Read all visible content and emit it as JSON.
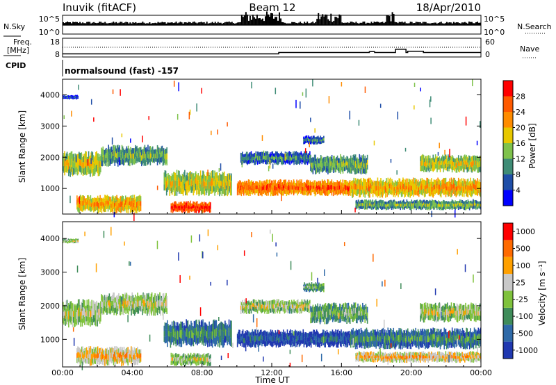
{
  "header": {
    "station": "Inuvik (fitACF)",
    "beam": "Beam 12",
    "date": "18/Apr/2010"
  },
  "nsky_panel": {
    "left_label": "N.Sky",
    "right_label": "N.Search",
    "left_ticks": [
      "10^5",
      "10^0"
    ],
    "right_ticks": [
      "10^5",
      "10^0"
    ]
  },
  "freq_panel": {
    "left_label_line1": "Freq.",
    "left_label_line2": "[MHz]",
    "right_label": "Nave",
    "left_ticks": [
      "18",
      "8"
    ],
    "right_ticks": [
      "60",
      "0"
    ],
    "freq_mhz_steps": [
      {
        "t": 0.0,
        "v": 10.5
      },
      {
        "t": 12.4,
        "v": 11.6
      },
      {
        "t": 17.6,
        "v": 12.3
      },
      {
        "t": 17.9,
        "v": 11.6
      },
      {
        "t": 19.1,
        "v": 14.2
      },
      {
        "t": 19.7,
        "v": 11.6
      },
      {
        "t": 19.8,
        "v": 12.6
      },
      {
        "t": 20.7,
        "v": 11.6
      },
      {
        "t": 24.0,
        "v": 11.6
      }
    ]
  },
  "cpid": {
    "label": "CPID",
    "value": "normalsound (fast) -157"
  },
  "xaxis": {
    "label": "Time UT",
    "ticks": [
      "00:00",
      "04:00",
      "08:00",
      "12:00",
      "16:00",
      "20:00",
      "00:00"
    ]
  },
  "chart_data": [
    {
      "type": "heatmap",
      "name": "power",
      "ylabel": "Slant Range [km]",
      "yticks": [
        "1000",
        "2000",
        "3000",
        "4000"
      ],
      "ylim": [
        180,
        4500
      ],
      "xlim_hours": [
        0,
        24
      ],
      "colorbar_label": "Power [dB]",
      "colorbar_ticks": [
        "4",
        "8",
        "12",
        "16",
        "20",
        "24",
        "28"
      ],
      "colorscale": [
        "#0000ff",
        "#1f4ea8",
        "#3f8c76",
        "#7fc24c",
        "#e8c800",
        "#ff8c00",
        "#ff5a00",
        "#ff0000"
      ],
      "echo_bands": [
        {
          "t0": 0.0,
          "t1": 2.2,
          "r0": 1350,
          "r1": 2200,
          "level": 4
        },
        {
          "t0": 2.2,
          "t1": 6.0,
          "r0": 1700,
          "r1": 2400,
          "level": 3
        },
        {
          "t0": 0.8,
          "t1": 4.5,
          "r0": 200,
          "r1": 800,
          "level": 5
        },
        {
          "t0": 6.2,
          "t1": 8.5,
          "r0": 200,
          "r1": 600,
          "level": 7
        },
        {
          "t0": 5.8,
          "t1": 9.7,
          "r0": 750,
          "r1": 1600,
          "level": 4
        },
        {
          "t0": 10.0,
          "t1": 16.5,
          "r0": 750,
          "r1": 1300,
          "level": 6
        },
        {
          "t0": 16.5,
          "t1": 24.0,
          "r0": 700,
          "r1": 1350,
          "level": 5
        },
        {
          "t0": 10.2,
          "t1": 14.2,
          "r0": 1750,
          "r1": 2200,
          "level": 2
        },
        {
          "t0": 14.2,
          "t1": 17.5,
          "r0": 1450,
          "r1": 2100,
          "level": 3
        },
        {
          "t0": 20.5,
          "t1": 24.0,
          "r0": 1500,
          "r1": 2100,
          "level": 4
        },
        {
          "t0": 16.8,
          "t1": 24.0,
          "r0": 300,
          "r1": 650,
          "level": 3
        },
        {
          "t0": 0.0,
          "t1": 0.9,
          "r0": 3850,
          "r1": 4000,
          "level": 1
        },
        {
          "t0": 13.8,
          "t1": 15.0,
          "r0": 2400,
          "r1": 2700,
          "level": 2
        }
      ]
    },
    {
      "type": "heatmap",
      "name": "velocity",
      "ylabel": "Slant Range [km]",
      "yticks": [
        "1000",
        "2000",
        "3000",
        "4000"
      ],
      "ylim": [
        180,
        4500
      ],
      "xlim_hours": [
        0,
        24
      ],
      "colorbar_label": "Velocity [m s⁻¹]",
      "colorbar_ticks": [
        "1000",
        "500",
        "100",
        "25",
        "-25",
        "-100",
        "-500",
        "-1000"
      ],
      "colorscale": [
        "#2038b0",
        "#2f6aa8",
        "#3f8c5a",
        "#7fc23c",
        "#c8c8c8",
        "#ffa000",
        "#ff6a00",
        "#ff0000"
      ],
      "echo_bands": [
        {
          "t0": 0.0,
          "t1": 2.2,
          "r0": 1350,
          "r1": 2200,
          "level": 4
        },
        {
          "t0": 2.2,
          "t1": 6.0,
          "r0": 1700,
          "r1": 2400,
          "level": 4
        },
        {
          "t0": 0.8,
          "t1": 4.5,
          "r0": 200,
          "r1": 800,
          "level": 5
        },
        {
          "t0": 6.2,
          "t1": 8.5,
          "r0": 200,
          "r1": 600,
          "level": 4
        },
        {
          "t0": 5.8,
          "t1": 9.7,
          "r0": 750,
          "r1": 1600,
          "level": 2
        },
        {
          "t0": 10.0,
          "t1": 16.5,
          "r0": 750,
          "r1": 1300,
          "level": 1
        },
        {
          "t0": 16.5,
          "t1": 24.0,
          "r0": 700,
          "r1": 1350,
          "level": 2
        },
        {
          "t0": 10.2,
          "t1": 14.2,
          "r0": 1750,
          "r1": 2200,
          "level": 4
        },
        {
          "t0": 14.2,
          "t1": 17.5,
          "r0": 1450,
          "r1": 2100,
          "level": 3
        },
        {
          "t0": 20.5,
          "t1": 24.0,
          "r0": 1500,
          "r1": 2100,
          "level": 4
        },
        {
          "t0": 16.8,
          "t1": 24.0,
          "r0": 300,
          "r1": 650,
          "level": 5
        },
        {
          "t0": 0.0,
          "t1": 0.9,
          "r0": 3850,
          "r1": 4000,
          "level": 4
        },
        {
          "t0": 13.8,
          "t1": 15.0,
          "r0": 2400,
          "r1": 2700,
          "level": 3
        }
      ]
    }
  ]
}
